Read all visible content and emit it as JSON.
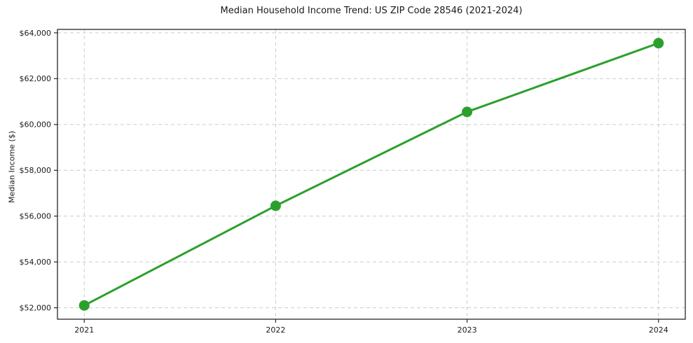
{
  "chart_data": {
    "type": "line",
    "title": "Median Household Income Trend: US ZIP Code 28546 (2021-2024)",
    "xlabel": "",
    "ylabel": "Median Income ($)",
    "series": [
      {
        "name": "Median household income",
        "x": [
          2021,
          2022,
          2023,
          2024
        ],
        "values": [
          52100,
          56450,
          60550,
          63550
        ]
      }
    ],
    "xlim": [
      2020.86,
      2024.14
    ],
    "ylim": [
      51500,
      64150
    ],
    "xticks": [
      2021,
      2022,
      2023,
      2024
    ],
    "xtick_labels": [
      "2021",
      "2022",
      "2023",
      "2024"
    ],
    "yticks": [
      52000,
      54000,
      56000,
      58000,
      60000,
      62000,
      64000
    ],
    "ytick_labels": [
      "$52,000",
      "$54,000",
      "$56,000",
      "$58,000",
      "$60,000",
      "$62,000",
      "$64,000"
    ],
    "grid": true,
    "grid_style": "dashed",
    "legend_position": "none",
    "marker": "circle"
  },
  "colors": {
    "line": "#2ca02c",
    "marker": "#2ca02c",
    "grid": "#cccccc",
    "spine": "#262626",
    "tick": "#262626",
    "text": "#1a1a1a",
    "background": "#ffffff"
  }
}
